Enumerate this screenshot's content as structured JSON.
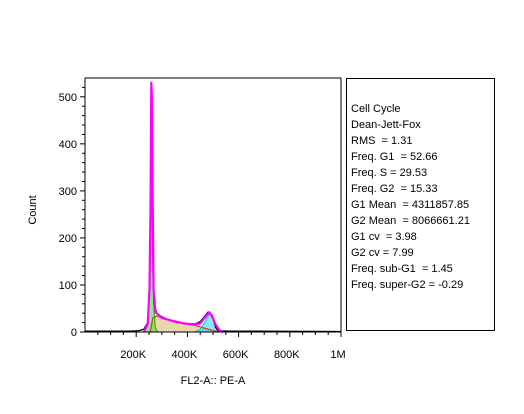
{
  "chart_data": {
    "type": "area",
    "xlabel": "FL2-A:: PE-A",
    "ylabel": "Count",
    "xlim": [
      0,
      1000000
    ],
    "ylim": [
      0,
      540
    ],
    "x_ticks": [
      {
        "value": 200000,
        "label": "200K"
      },
      {
        "value": 400000,
        "label": "400K"
      },
      {
        "value": 600000,
        "label": "600K"
      },
      {
        "value": 800000,
        "label": "800K"
      },
      {
        "value": 1000000,
        "label": "1M"
      }
    ],
    "y_ticks": [
      {
        "value": 0,
        "label": "0"
      },
      {
        "value": 100,
        "label": "100"
      },
      {
        "value": 200,
        "label": "200"
      },
      {
        "value": 300,
        "label": "300"
      },
      {
        "value": 400,
        "label": "400"
      },
      {
        "value": 500,
        "label": "500"
      }
    ],
    "series": [
      {
        "color": "#000000",
        "role": "histogram",
        "points": [
          [
            0,
            2
          ],
          [
            180000,
            2
          ],
          [
            210000,
            3
          ],
          [
            230000,
            6
          ],
          [
            245000,
            20
          ],
          [
            252000,
            90
          ],
          [
            256000,
            250
          ],
          [
            259000,
            480
          ],
          [
            261000,
            470
          ],
          [
            263000,
            300
          ],
          [
            266000,
            120
          ],
          [
            270000,
            60
          ],
          [
            280000,
            40
          ],
          [
            300000,
            32
          ],
          [
            330000,
            25
          ],
          [
            360000,
            20
          ],
          [
            400000,
            18
          ],
          [
            430000,
            17
          ],
          [
            450000,
            22
          ],
          [
            470000,
            35
          ],
          [
            480000,
            42
          ],
          [
            490000,
            40
          ],
          [
            500000,
            28
          ],
          [
            510000,
            10
          ],
          [
            520000,
            3
          ],
          [
            560000,
            2
          ],
          [
            1000000,
            1
          ]
        ]
      },
      {
        "color": "#00cc00",
        "role": "G1",
        "points": [
          [
            230000,
            0
          ],
          [
            245000,
            15
          ],
          [
            252000,
            80
          ],
          [
            256000,
            240
          ],
          [
            259000,
            420
          ],
          [
            261000,
            410
          ],
          [
            264000,
            250
          ],
          [
            268000,
            60
          ],
          [
            275000,
            8
          ],
          [
            285000,
            0
          ]
        ]
      },
      {
        "color": "#ccaa44",
        "role": "S",
        "points": [
          [
            255000,
            0
          ],
          [
            265000,
            30
          ],
          [
            280000,
            34
          ],
          [
            300000,
            30
          ],
          [
            340000,
            24
          ],
          [
            380000,
            19
          ],
          [
            420000,
            15
          ],
          [
            450000,
            11
          ],
          [
            480000,
            6
          ],
          [
            510000,
            2
          ],
          [
            530000,
            0
          ]
        ]
      },
      {
        "color": "#00ccee",
        "role": "G2",
        "points": [
          [
            430000,
            0
          ],
          [
            450000,
            6
          ],
          [
            465000,
            18
          ],
          [
            478000,
            32
          ],
          [
            488000,
            38
          ],
          [
            498000,
            30
          ],
          [
            510000,
            14
          ],
          [
            525000,
            3
          ],
          [
            535000,
            0
          ]
        ]
      },
      {
        "color": "#ff00ff",
        "role": "model",
        "points": [
          [
            230000,
            0
          ],
          [
            245000,
            17
          ],
          [
            252000,
            92
          ],
          [
            256000,
            262
          ],
          [
            259000,
            530
          ],
          [
            261000,
            505
          ],
          [
            264000,
            300
          ],
          [
            268000,
            90
          ],
          [
            275000,
            42
          ],
          [
            300000,
            30
          ],
          [
            340000,
            24
          ],
          [
            380000,
            19
          ],
          [
            420000,
            16
          ],
          [
            450000,
            18
          ],
          [
            470000,
            32
          ],
          [
            485000,
            42
          ],
          [
            495000,
            36
          ],
          [
            510000,
            16
          ],
          [
            525000,
            4
          ],
          [
            540000,
            0
          ]
        ]
      }
    ]
  },
  "stats": {
    "lines": [
      "Cell Cycle",
      "Dean-Jett-Fox",
      "RMS  = 1.31",
      "Freq. G1  = 52.66",
      "Freq. S = 29.53",
      "Freq. G2  = 15.33",
      "G1 Mean  = 4311857.85",
      "G2 Mean  = 8066661.21",
      "G1 cv  = 3.98",
      "G2 cv = 7.99",
      "Freq. sub-G1  = 1.45",
      "Freq. super-G2 = -0.29"
    ]
  }
}
